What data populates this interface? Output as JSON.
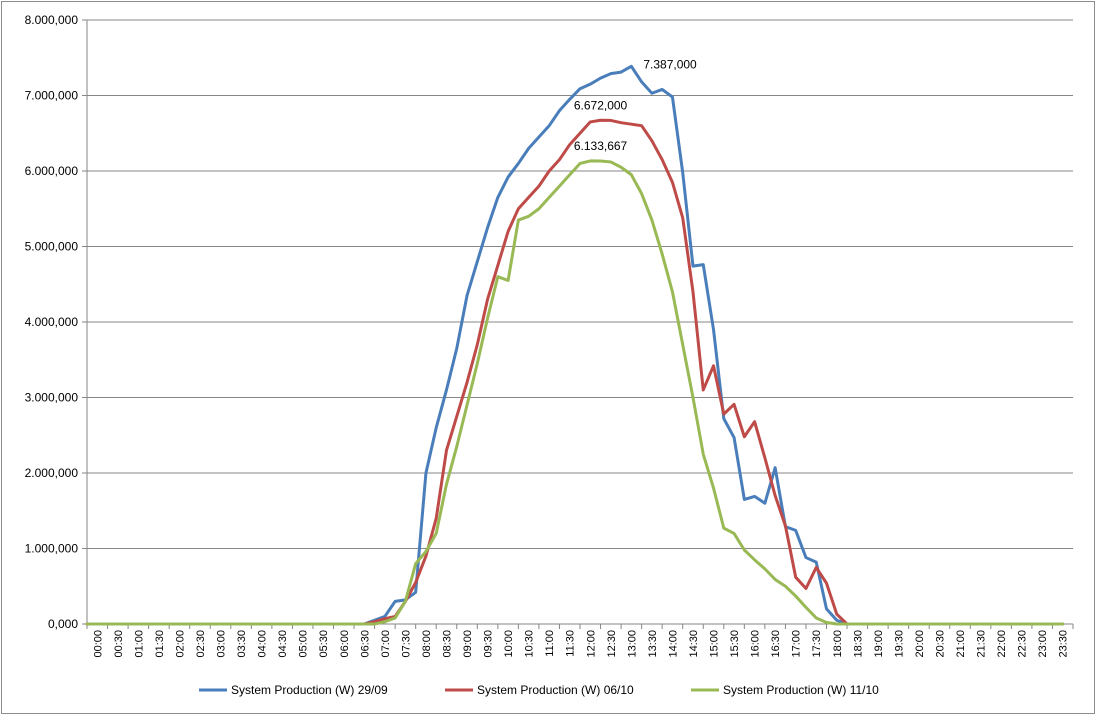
{
  "chart_data": {
    "type": "line",
    "title": "",
    "xlabel": "",
    "ylabel": "",
    "ylim": [
      0,
      8000000
    ],
    "y_ticks": [
      0,
      1000000,
      2000000,
      3000000,
      4000000,
      5000000,
      6000000,
      7000000,
      8000000
    ],
    "y_tick_labels": [
      "0,000",
      "1.000,000",
      "2.000,000",
      "3.000,000",
      "4.000,000",
      "5.000,000",
      "6.000,000",
      "7.000,000",
      "8.000,000"
    ],
    "grid": true,
    "legend": "bottom",
    "x_tick_labels": [
      "00:00",
      "00:30",
      "01:00",
      "01:30",
      "02:00",
      "02:30",
      "03:00",
      "03:30",
      "04:00",
      "04:30",
      "05:00",
      "05:30",
      "06:00",
      "06:30",
      "07:00",
      "07:30",
      "08:00",
      "08:30",
      "09:00",
      "09:30",
      "10:00",
      "10:30",
      "11:00",
      "11:30",
      "12:00",
      "12:30",
      "13:00",
      "13:30",
      "14:00",
      "14:30",
      "15:00",
      "15:30",
      "16:00",
      "16:30",
      "17:00",
      "17:30",
      "18:00",
      "18:30",
      "19:00",
      "19:30",
      "20:00",
      "20:30",
      "21:00",
      "21:30",
      "22:00",
      "22:30",
      "23:00",
      "23:30"
    ],
    "x_interval_minutes": 15,
    "series": [
      {
        "name": "System Production (W) 29/09",
        "color": "#4a7ebb",
        "values": [
          0,
          0,
          0,
          0,
          0,
          0,
          0,
          0,
          0,
          0,
          0,
          0,
          0,
          0,
          0,
          0,
          0,
          0,
          0,
          0,
          0,
          0,
          0,
          0,
          0,
          0,
          0,
          0,
          50000,
          100000,
          300000,
          320000,
          420000,
          2000000,
          2600000,
          3100000,
          3650000,
          4350000,
          4800000,
          5250000,
          5650000,
          5920000,
          6100000,
          6300000,
          6450000,
          6600000,
          6800000,
          6950000,
          7090000,
          7150000,
          7230000,
          7290000,
          7310000,
          7387000,
          7180000,
          7030000,
          7080000,
          6980000,
          5980000,
          4740000,
          4760000,
          3900000,
          2720000,
          2470000,
          1650000,
          1690000,
          1600000,
          2070000,
          1290000,
          1240000,
          880000,
          820000,
          200000,
          50000,
          0,
          0,
          0,
          0,
          0,
          0,
          0,
          0,
          0,
          0,
          0,
          0,
          0,
          0,
          0,
          0,
          0,
          0,
          0,
          0,
          0,
          0
        ]
      },
      {
        "name": "System Production (W) 06/10",
        "color": "#be4b48",
        "values": [
          0,
          0,
          0,
          0,
          0,
          0,
          0,
          0,
          0,
          0,
          0,
          0,
          0,
          0,
          0,
          0,
          0,
          0,
          0,
          0,
          0,
          0,
          0,
          0,
          0,
          0,
          0,
          0,
          30000,
          70000,
          100000,
          300000,
          550000,
          900000,
          1400000,
          2300000,
          2750000,
          3200000,
          3700000,
          4300000,
          4750000,
          5200000,
          5500000,
          5650000,
          5800000,
          6000000,
          6150000,
          6350000,
          6500000,
          6650000,
          6672000,
          6670000,
          6640000,
          6620000,
          6600000,
          6400000,
          6150000,
          5850000,
          5380000,
          4400000,
          3100000,
          3420000,
          2780000,
          2910000,
          2480000,
          2680000,
          2200000,
          1700000,
          1300000,
          620000,
          470000,
          750000,
          540000,
          130000,
          0,
          0,
          0,
          0,
          0,
          0,
          0,
          0,
          0,
          0,
          0,
          0,
          0,
          0,
          0,
          0,
          0,
          0,
          0,
          0,
          0,
          0
        ]
      },
      {
        "name": "System Production (W) 11/10",
        "color": "#98b954",
        "values": [
          0,
          0,
          0,
          0,
          0,
          0,
          0,
          0,
          0,
          0,
          0,
          0,
          0,
          0,
          0,
          0,
          0,
          0,
          0,
          0,
          0,
          0,
          0,
          0,
          0,
          0,
          0,
          0,
          0,
          30000,
          80000,
          300000,
          800000,
          960000,
          1200000,
          1850000,
          2350000,
          2900000,
          3450000,
          4050000,
          4600000,
          4550000,
          5350000,
          5400000,
          5500000,
          5650000,
          5800000,
          5950000,
          6100000,
          6133667,
          6133000,
          6120000,
          6050000,
          5950000,
          5700000,
          5350000,
          4900000,
          4400000,
          3700000,
          3000000,
          2250000,
          1800000,
          1270000,
          1200000,
          980000,
          850000,
          730000,
          590000,
          500000,
          370000,
          220000,
          80000,
          20000,
          0,
          0,
          0,
          0,
          0,
          0,
          0,
          0,
          0,
          0,
          0,
          0,
          0,
          0,
          0,
          0,
          0,
          0,
          0,
          0,
          0,
          0,
          0
        ]
      }
    ],
    "annotations": [
      {
        "series": 0,
        "x_index": 53,
        "value": 7387000,
        "label": "7.387,000"
      },
      {
        "series": 1,
        "x_index": 50,
        "value": 6672000,
        "label": "6.672,000"
      },
      {
        "series": 2,
        "x_index": 50,
        "value": 6133667,
        "label": "6.133,667"
      }
    ]
  }
}
